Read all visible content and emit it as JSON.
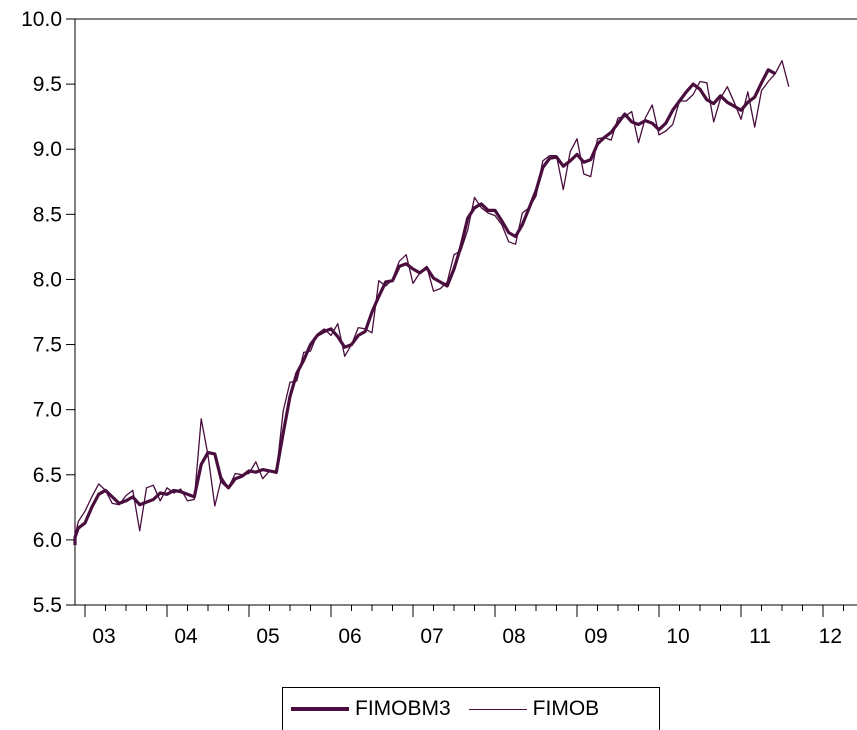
{
  "chart_data": {
    "type": "line",
    "title": "",
    "xlabel": "",
    "ylabel": "",
    "ylim": [
      5.5,
      10.0
    ],
    "ytick_labels": [
      "5.5",
      "6.0",
      "6.5",
      "7.0",
      "7.5",
      "8.0",
      "8.5",
      "9.0",
      "9.5",
      "10.0"
    ],
    "xtick_labels": [
      "03",
      "04",
      "05",
      "06",
      "07",
      "08",
      "09",
      "10",
      "11",
      "12"
    ],
    "x_start": "2002-10",
    "x_end": "2012-03",
    "frequency": "monthly",
    "grid": false,
    "legend_position": "bottom-center",
    "colors": {
      "line": "#4a0e3e"
    },
    "series": [
      {
        "name": "FIMOBM3",
        "values": [
          5.96,
          6.02,
          6.09,
          6.13,
          6.25,
          6.35,
          6.38,
          6.33,
          6.28,
          6.3,
          6.33,
          6.27,
          6.29,
          6.31,
          6.36,
          6.35,
          6.38,
          6.37,
          6.35,
          6.33,
          6.58,
          6.67,
          6.66,
          6.45,
          6.4,
          6.47,
          6.49,
          6.53,
          6.52,
          6.54,
          6.53,
          6.52,
          6.82,
          7.1,
          7.28,
          7.38,
          7.5,
          7.57,
          7.6,
          7.62,
          7.56,
          7.48,
          7.5,
          7.57,
          7.6,
          7.75,
          7.87,
          7.98,
          7.99,
          8.1,
          8.12,
          8.08,
          8.05,
          8.09,
          8.01,
          7.98,
          7.95,
          8.08,
          8.25,
          8.47,
          8.55,
          8.58,
          8.53,
          8.53,
          8.45,
          8.36,
          8.33,
          8.42,
          8.55,
          8.68,
          8.86,
          8.93,
          8.94,
          8.87,
          8.91,
          8.96,
          8.9,
          8.92,
          9.04,
          9.09,
          9.13,
          9.2,
          9.27,
          9.21,
          9.19,
          9.22,
          9.2,
          9.15,
          9.2,
          9.3,
          9.37,
          9.44,
          9.5,
          9.46,
          9.38,
          9.35,
          9.41,
          9.36,
          9.33,
          9.3,
          9.36,
          9.4,
          9.51,
          9.61,
          9.58
        ]
      },
      {
        "name": "FIMOB",
        "values": [
          6.13,
          6.02,
          6.14,
          6.22,
          6.33,
          6.43,
          6.38,
          6.28,
          6.27,
          6.34,
          6.38,
          6.07,
          6.4,
          6.42,
          6.3,
          6.4,
          6.36,
          6.39,
          6.3,
          6.31,
          6.93,
          6.65,
          6.26,
          6.48,
          6.4,
          6.51,
          6.5,
          6.51,
          6.6,
          6.47,
          6.53,
          6.51,
          6.99,
          7.21,
          7.22,
          7.44,
          7.45,
          7.58,
          7.62,
          7.57,
          7.66,
          7.41,
          7.5,
          7.63,
          7.62,
          7.59,
          7.99,
          7.95,
          8.0,
          8.14,
          8.19,
          7.97,
          8.05,
          8.1,
          7.91,
          7.93,
          7.98,
          8.19,
          8.22,
          8.38,
          8.63,
          8.55,
          8.51,
          8.49,
          8.42,
          8.29,
          8.27,
          8.51,
          8.55,
          8.64,
          8.91,
          8.95,
          8.95,
          8.69,
          8.98,
          9.08,
          8.81,
          8.79,
          9.08,
          9.09,
          9.07,
          9.24,
          9.25,
          9.29,
          9.05,
          9.24,
          9.34,
          9.11,
          9.14,
          9.19,
          9.37,
          9.37,
          9.42,
          9.52,
          9.51,
          9.21,
          9.39,
          9.48,
          9.36,
          9.23,
          9.44,
          9.17,
          9.45,
          9.52,
          9.58,
          9.68,
          9.48
        ]
      }
    ]
  }
}
